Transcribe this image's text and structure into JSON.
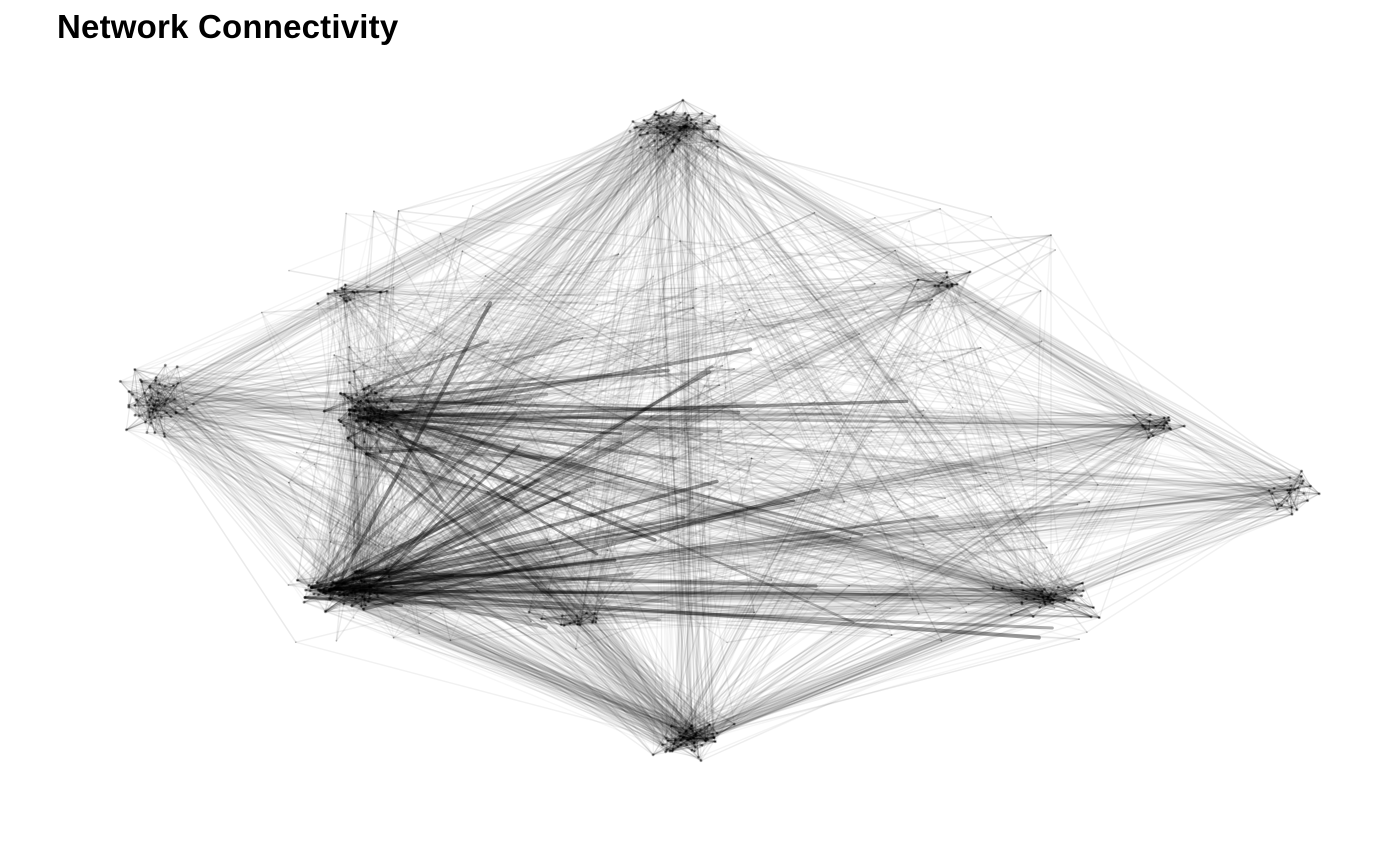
{
  "title": "Network Connectivity",
  "colors": {
    "background": "#ffffff",
    "edge": "#000000",
    "node": "#000000"
  }
}
